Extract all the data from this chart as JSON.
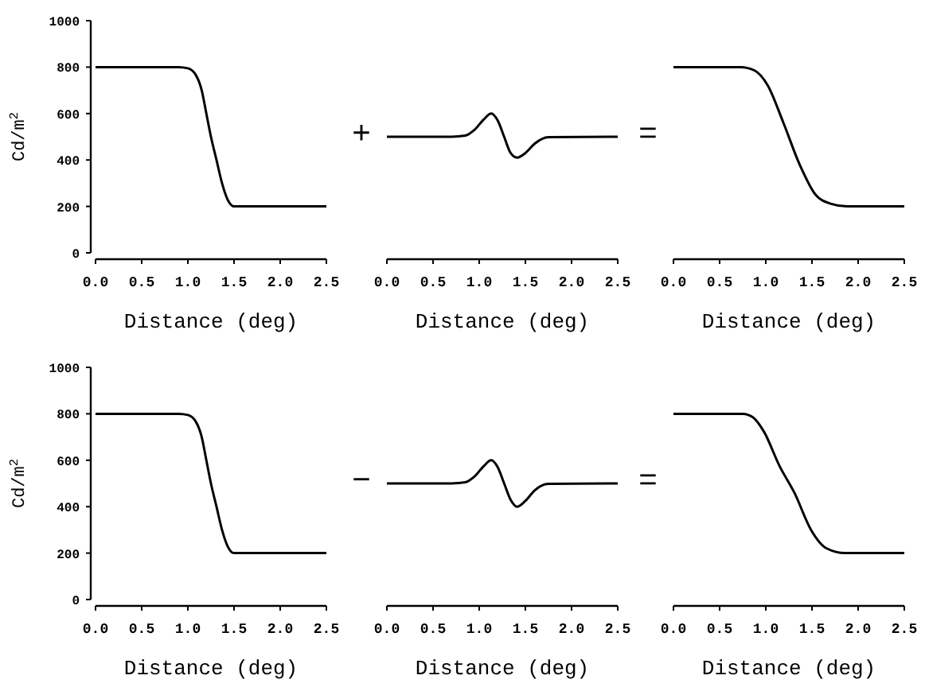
{
  "chart_data": [
    {
      "type": "line",
      "ylabel": "Cd/m$^{2}$",
      "xlabel": "Distance (deg)",
      "xlim": [
        0,
        2.5
      ],
      "ylim": [
        0,
        1000
      ],
      "xticks": [
        {
          "value": 0,
          "label": "0.0"
        },
        0.5,
        {
          "value": 1,
          "label": "1.0"
        },
        1.5,
        {
          "value": 2,
          "label": "2.0"
        },
        2.5
      ],
      "yticks": [
        0,
        200,
        400,
        600,
        800,
        1000
      ],
      "grid": false,
      "marker": "none",
      "series": [
        {
          "color": "#000000",
          "x": [
            0,
            0.9,
            1.0,
            1.08,
            1.15,
            1.2,
            1.25,
            1.31,
            1.37,
            1.43,
            1.5,
            2.5
          ],
          "values": [
            800,
            800,
            795,
            770,
            700,
            600,
            500,
            400,
            300,
            230,
            200,
            200
          ]
        }
      ]
    },
    {
      "type": "line",
      "xlabel": "Distance (deg)",
      "xlim": [
        0,
        2.5
      ],
      "ylim": [
        0,
        1000
      ],
      "xticks": [
        {
          "value": 0,
          "label": "0.0"
        },
        0.5,
        {
          "value": 1,
          "label": "1.0"
        },
        1.5,
        {
          "value": 2,
          "label": "2.0"
        },
        2.5
      ],
      "tick_labels": "x",
      "grid": false,
      "marker": "none",
      "annotations": [
        "+"
      ],
      "series": [
        {
          "color": "#000000",
          "x": [
            0,
            0.7,
            0.85,
            0.95,
            1.05,
            1.13,
            1.2,
            1.27,
            1.34,
            1.41,
            1.5,
            1.6,
            1.75,
            2.5
          ],
          "values": [
            500,
            500,
            505,
            530,
            575,
            600,
            570,
            500,
            430,
            410,
            430,
            470,
            498,
            500
          ]
        }
      ]
    },
    {
      "type": "line",
      "xlabel": "Distance (deg)",
      "xlim": [
        0,
        2.5
      ],
      "ylim": [
        0,
        1000
      ],
      "xticks": [
        {
          "value": 0,
          "label": "0.0"
        },
        0.5,
        {
          "value": 1,
          "label": "1.0"
        },
        1.5,
        {
          "value": 2,
          "label": "2.0"
        },
        2.5
      ],
      "tick_labels": "x",
      "grid": false,
      "marker": "none",
      "annotations": [
        "="
      ],
      "series": [
        {
          "color": "#000000",
          "x": [
            0,
            0.73,
            0.88,
            1.02,
            1.19,
            1.37,
            1.54,
            1.7,
            1.88,
            2.5
          ],
          "values": [
            800,
            800,
            785,
            722,
            561,
            377,
            250,
            212,
            200,
            200
          ]
        }
      ]
    },
    {
      "type": "line",
      "ylabel": "Cd/m$^{2}$",
      "xlabel": "Distance (deg)",
      "xlim": [
        0,
        2.5
      ],
      "ylim": [
        0,
        1000
      ],
      "xticks": [
        {
          "value": 0,
          "label": "0.0"
        },
        0.5,
        {
          "value": 1,
          "label": "1.0"
        },
        1.5,
        {
          "value": 2,
          "label": "2.0"
        },
        2.5
      ],
      "yticks": [
        0,
        200,
        400,
        600,
        800,
        1000
      ],
      "grid": false,
      "marker": "none",
      "series": [
        {
          "color": "#000000",
          "x": [
            0,
            0.9,
            1.0,
            1.08,
            1.15,
            1.2,
            1.25,
            1.31,
            1.37,
            1.43,
            1.5,
            2.5
          ],
          "values": [
            800,
            800,
            795,
            770,
            700,
            600,
            500,
            400,
            300,
            230,
            200,
            200
          ]
        }
      ]
    },
    {
      "type": "line",
      "xlabel": "Distance (deg)",
      "xlim": [
        0,
        2.5
      ],
      "ylim": [
        0,
        1000
      ],
      "xticks": [
        {
          "value": 0,
          "label": "0.0"
        },
        0.5,
        {
          "value": 1,
          "label": "1.0"
        },
        1.5,
        {
          "value": 2,
          "label": "2.0"
        },
        2.5
      ],
      "tick_labels": "x",
      "grid": false,
      "marker": "none",
      "annotations": [
        "−"
      ],
      "series": [
        {
          "color": "#000000",
          "x": [
            0,
            0.7,
            0.85,
            0.95,
            1.05,
            1.13,
            1.2,
            1.27,
            1.34,
            1.41,
            1.5,
            1.6,
            1.75,
            2.5
          ],
          "values": [
            500,
            500,
            505,
            530,
            575,
            600,
            570,
            500,
            430,
            400,
            425,
            470,
            498,
            500
          ]
        }
      ]
    },
    {
      "type": "line",
      "xlabel": "Distance (deg)",
      "xlim": [
        0,
        2.5
      ],
      "ylim": [
        0,
        1000
      ],
      "xticks": [
        {
          "value": 0,
          "label": "0.0"
        },
        0.5,
        {
          "value": 1,
          "label": "1.0"
        },
        1.5,
        {
          "value": 2,
          "label": "2.0"
        },
        2.5
      ],
      "tick_labels": "x",
      "grid": false,
      "marker": "none",
      "annotations": [
        "="
      ],
      "series": [
        {
          "color": "#000000",
          "x": [
            0,
            0.75,
            0.86,
            0.98,
            1.15,
            1.31,
            1.49,
            1.66,
            1.86,
            2.5
          ],
          "values": [
            800,
            800,
            785,
            723,
            574,
            460,
            300,
            220,
            200,
            200
          ]
        }
      ]
    }
  ]
}
